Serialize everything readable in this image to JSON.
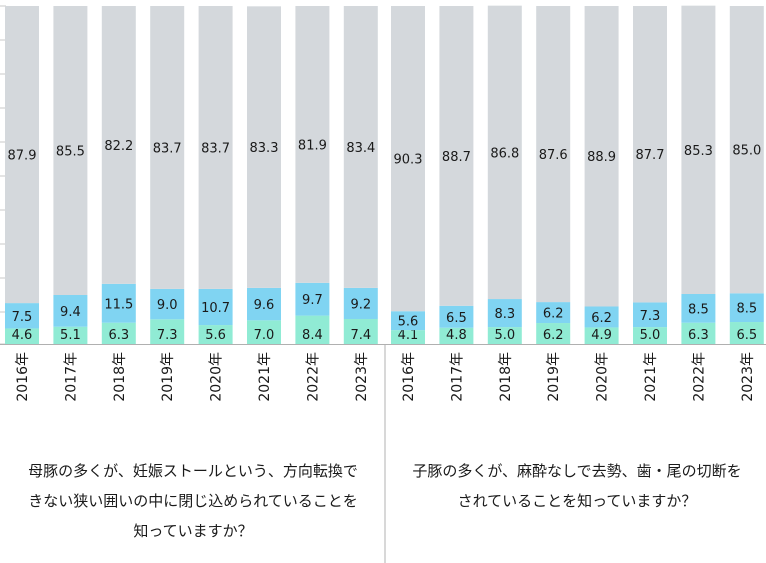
{
  "chart_data": [
    {
      "type": "bar",
      "stacked": true,
      "percent_stacked": true,
      "categories": [
        "2016年",
        "2017年",
        "2018年",
        "2019年",
        "2020年",
        "2021年",
        "2022年",
        "2023年"
      ],
      "series": [
        {
          "values": [
            4.6,
            5.1,
            6.3,
            7.3,
            5.6,
            7.0,
            8.4,
            7.4
          ],
          "color": "#90ebd4"
        },
        {
          "values": [
            7.5,
            9.4,
            11.5,
            9.0,
            10.7,
            9.6,
            9.7,
            9.2
          ],
          "color": "#80d4f2"
        },
        {
          "values": [
            87.9,
            85.5,
            82.2,
            83.7,
            83.7,
            83.3,
            81.9,
            83.4
          ],
          "color": "#d4d8dc"
        }
      ],
      "ylim": [
        0,
        100
      ],
      "grid": false,
      "caption": [
        "母豚の多くが、妊娠ストールという、方向転換で",
        "きない狭い囲いの中に閉じ込められていることを",
        "知っていますか？"
      ]
    },
    {
      "type": "bar",
      "stacked": true,
      "percent_stacked": true,
      "categories": [
        "2016年",
        "2017年",
        "2018年",
        "2019年",
        "2020年",
        "2021年",
        "2022年",
        "2023年"
      ],
      "series": [
        {
          "values": [
            4.1,
            4.8,
            5.0,
            6.2,
            4.9,
            5.0,
            6.3,
            6.5
          ],
          "color": "#90ebd4"
        },
        {
          "values": [
            5.6,
            6.5,
            8.3,
            6.2,
            6.2,
            7.3,
            8.5,
            8.5
          ],
          "color": "#80d4f2"
        },
        {
          "values": [
            90.3,
            88.7,
            86.8,
            87.6,
            88.9,
            87.7,
            85.3,
            85.0
          ],
          "color": "#d4d8dc"
        }
      ],
      "ylim": [
        0,
        100
      ],
      "grid": false,
      "caption": [
        "子豚の多くが、麻酔なしで去勢、歯・尾の切断を",
        "されていることを知っていますか？"
      ]
    }
  ]
}
